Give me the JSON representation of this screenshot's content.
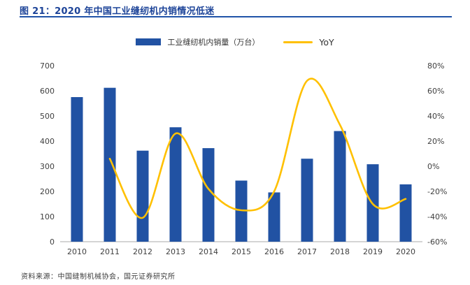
{
  "header": {
    "title": "图 21：2020 年中国工业缝纫机内销情况低迷"
  },
  "legend": {
    "sales_label": "工业缝纫机内销量（万台）",
    "yoy_label": "YoY"
  },
  "footer": {
    "source": "资料来源：中国缝制机械协会，国元证券研究所"
  },
  "chart_data": {
    "type": "bar",
    "subtype": "bar-line-combo",
    "title": "2020 年中国工业缝纫机内销情况低迷",
    "categories": [
      "2010",
      "2011",
      "2012",
      "2013",
      "2014",
      "2015",
      "2016",
      "2017",
      "2018",
      "2019",
      "2020"
    ],
    "series": [
      {
        "name": "工业缝纫机内销量（万台）",
        "type": "bar",
        "axis": "left",
        "values": [
          575,
          612,
          362,
          455,
          372,
          243,
          196,
          330,
          440,
          308,
          228
        ]
      },
      {
        "name": "YoY",
        "type": "line",
        "axis": "right",
        "values": [
          null,
          6,
          -41,
          26,
          -18,
          -35,
          -20,
          68,
          33,
          -30,
          -26
        ]
      }
    ],
    "left_axis": {
      "min": 0,
      "max": 700,
      "ticks": [
        0,
        100,
        200,
        300,
        400,
        500,
        600,
        700
      ]
    },
    "right_axis": {
      "min": -60,
      "max": 80,
      "ticks": [
        -60,
        -40,
        -20,
        0,
        20,
        40,
        60,
        80
      ],
      "format": "percent"
    },
    "grid": false,
    "legend_position": "top-center",
    "colors": {
      "bar": "#2152a3",
      "line": "#ffc000",
      "axis_text": "#3f3f3f",
      "axis_line": "#ababab"
    }
  }
}
